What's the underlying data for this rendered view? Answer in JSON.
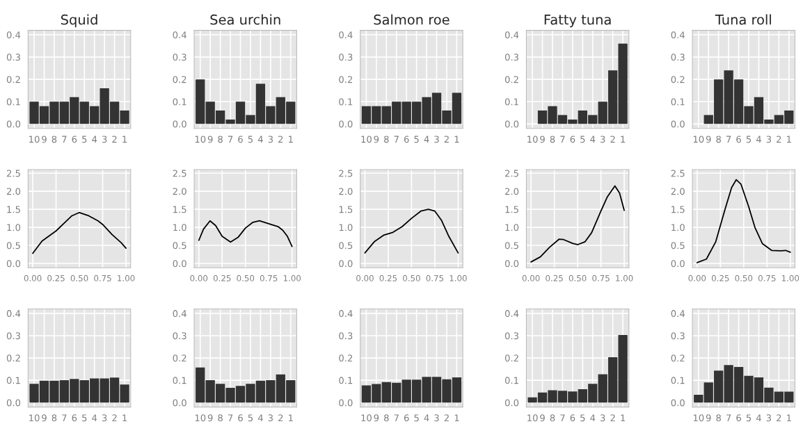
{
  "chart_data": [
    {
      "type": "bar",
      "title": "Squid",
      "categories": [
        "10",
        "9",
        "8",
        "7",
        "6",
        "5",
        "4",
        "3",
        "2",
        "1"
      ],
      "values": [
        0.1,
        0.08,
        0.1,
        0.1,
        0.12,
        0.1,
        0.08,
        0.16,
        0.1,
        0.06
      ],
      "color": "#333333",
      "ylim": [
        -0.02,
        0.42
      ],
      "yticks": [
        {
          "value": 0,
          "label": "0.0"
        },
        0.1,
        0.2,
        0.3,
        0.4
      ],
      "grid": true
    },
    {
      "type": "bar",
      "title": "Sea urchin",
      "categories": [
        "10",
        "9",
        "8",
        "7",
        "6",
        "5",
        "4",
        "3",
        "2",
        "1"
      ],
      "values": [
        0.2,
        0.1,
        0.06,
        0.02,
        0.1,
        0.04,
        0.18,
        0.08,
        0.12,
        0.1
      ],
      "color": "#333333",
      "ylim": [
        -0.02,
        0.42
      ],
      "yticks": [
        {
          "value": 0,
          "label": "0.0"
        },
        0.1,
        0.2,
        0.3,
        0.4
      ],
      "grid": true
    },
    {
      "type": "bar",
      "title": "Salmon roe",
      "categories": [
        "10",
        "9",
        "8",
        "7",
        "6",
        "5",
        "4",
        "3",
        "2",
        "1"
      ],
      "values": [
        0.08,
        0.08,
        0.08,
        0.1,
        0.1,
        0.1,
        0.12,
        0.14,
        0.06,
        0.14
      ],
      "color": "#333333",
      "ylim": [
        -0.02,
        0.42
      ],
      "yticks": [
        {
          "value": 0,
          "label": "0.0"
        },
        0.1,
        0.2,
        0.3,
        0.4
      ],
      "grid": true
    },
    {
      "type": "bar",
      "title": "Fatty tuna",
      "categories": [
        "10",
        "9",
        "8",
        "7",
        "6",
        "5",
        "4",
        "3",
        "2",
        "1"
      ],
      "values": [
        0.0,
        0.06,
        0.08,
        0.04,
        0.02,
        0.06,
        0.04,
        0.1,
        0.24,
        0.36
      ],
      "color": "#333333",
      "ylim": [
        -0.02,
        0.42
      ],
      "yticks": [
        {
          "value": 0,
          "label": "0.0"
        },
        0.1,
        0.2,
        0.3,
        0.4
      ],
      "grid": true
    },
    {
      "type": "bar",
      "title": "Tuna roll",
      "categories": [
        "10",
        "9",
        "8",
        "7",
        "6",
        "5",
        "4",
        "3",
        "2",
        "1"
      ],
      "values": [
        0.0,
        0.04,
        0.2,
        0.24,
        0.2,
        0.08,
        0.12,
        0.02,
        0.04,
        0.06
      ],
      "color": "#333333",
      "ylim": [
        -0.02,
        0.42
      ],
      "yticks": [
        {
          "value": 0,
          "label": "0.0"
        },
        0.1,
        0.2,
        0.3,
        0.4
      ],
      "grid": true
    },
    {
      "type": "line",
      "x": [
        0,
        0.1,
        0.25,
        0.35,
        0.42,
        0.5,
        0.6,
        0.7,
        0.75,
        0.85,
        0.95,
        1
      ],
      "values": [
        0.28,
        0.62,
        0.9,
        1.15,
        1.32,
        1.41,
        1.32,
        1.18,
        1.08,
        0.8,
        0.57,
        0.42
      ],
      "color": "#000000",
      "xlim": [
        -0.05,
        1.05
      ],
      "xticks": [
        {
          "value": 0,
          "label": "0.00"
        },
        {
          "value": 0.25,
          "label": "0.25"
        },
        {
          "value": 0.5,
          "label": "0.50"
        },
        {
          "value": 0.75,
          "label": "0.75"
        },
        {
          "value": 1,
          "label": "1.00"
        }
      ],
      "ylim": [
        -0.12,
        2.6
      ],
      "yticks": [
        {
          "value": 0,
          "label": "0.0"
        },
        0.5,
        {
          "value": 1,
          "label": "1.0"
        },
        1.5,
        {
          "value": 2,
          "label": "2.0"
        },
        2.5
      ],
      "grid": true
    },
    {
      "type": "line",
      "x": [
        0,
        0.05,
        0.12,
        0.18,
        0.25,
        0.34,
        0.42,
        0.5,
        0.58,
        0.65,
        0.75,
        0.85,
        0.9,
        0.95,
        1
      ],
      "values": [
        0.64,
        0.95,
        1.18,
        1.05,
        0.75,
        0.59,
        0.72,
        0.98,
        1.14,
        1.18,
        1.1,
        1.02,
        0.92,
        0.75,
        0.47
      ],
      "color": "#000000",
      "xlim": [
        -0.05,
        1.05
      ],
      "xticks": [
        {
          "value": 0,
          "label": "0.00"
        },
        {
          "value": 0.25,
          "label": "0.25"
        },
        {
          "value": 0.5,
          "label": "0.50"
        },
        {
          "value": 0.75,
          "label": "0.75"
        },
        {
          "value": 1,
          "label": "1.00"
        }
      ],
      "ylim": [
        -0.12,
        2.6
      ],
      "yticks": [
        {
          "value": 0,
          "label": "0.0"
        },
        0.5,
        {
          "value": 1,
          "label": "1.0"
        },
        1.5,
        {
          "value": 2,
          "label": "2.0"
        },
        2.5
      ],
      "grid": true
    },
    {
      "type": "line",
      "x": [
        0,
        0.1,
        0.2,
        0.3,
        0.4,
        0.5,
        0.6,
        0.68,
        0.75,
        0.82,
        0.9,
        1
      ],
      "values": [
        0.29,
        0.6,
        0.78,
        0.86,
        1.02,
        1.25,
        1.45,
        1.5,
        1.45,
        1.2,
        0.75,
        0.29
      ],
      "color": "#000000",
      "xlim": [
        -0.05,
        1.05
      ],
      "xticks": [
        {
          "value": 0,
          "label": "0.00"
        },
        {
          "value": 0.25,
          "label": "0.25"
        },
        {
          "value": 0.5,
          "label": "0.50"
        },
        {
          "value": 0.75,
          "label": "0.75"
        },
        {
          "value": 1,
          "label": "1.00"
        }
      ],
      "ylim": [
        -0.12,
        2.6
      ],
      "yticks": [
        {
          "value": 0,
          "label": "0.0"
        },
        0.5,
        {
          "value": 1,
          "label": "1.0"
        },
        1.5,
        {
          "value": 2,
          "label": "2.0"
        },
        2.5
      ],
      "grid": true
    },
    {
      "type": "line",
      "x": [
        0,
        0.1,
        0.2,
        0.3,
        0.35,
        0.45,
        0.5,
        0.58,
        0.65,
        0.75,
        0.82,
        0.9,
        0.95,
        1
      ],
      "values": [
        0.04,
        0.18,
        0.45,
        0.67,
        0.66,
        0.55,
        0.52,
        0.6,
        0.85,
        1.45,
        1.85,
        2.15,
        1.95,
        1.47
      ],
      "color": "#000000",
      "xlim": [
        -0.05,
        1.05
      ],
      "xticks": [
        {
          "value": 0,
          "label": "0.00"
        },
        {
          "value": 0.25,
          "label": "0.25"
        },
        {
          "value": 0.5,
          "label": "0.50"
        },
        {
          "value": 0.75,
          "label": "0.75"
        },
        {
          "value": 1,
          "label": "1.00"
        }
      ],
      "ylim": [
        -0.12,
        2.6
      ],
      "yticks": [
        {
          "value": 0,
          "label": "0.0"
        },
        0.5,
        {
          "value": 1,
          "label": "1.0"
        },
        1.5,
        {
          "value": 2,
          "label": "2.0"
        },
        2.5
      ],
      "grid": true
    },
    {
      "type": "line",
      "x": [
        0,
        0.1,
        0.2,
        0.3,
        0.37,
        0.42,
        0.47,
        0.55,
        0.62,
        0.7,
        0.8,
        0.9,
        0.95,
        1
      ],
      "values": [
        0.02,
        0.12,
        0.6,
        1.5,
        2.1,
        2.32,
        2.2,
        1.6,
        1.0,
        0.55,
        0.36,
        0.35,
        0.36,
        0.31
      ],
      "color": "#000000",
      "xlim": [
        -0.05,
        1.05
      ],
      "xticks": [
        {
          "value": 0,
          "label": "0.00"
        },
        {
          "value": 0.25,
          "label": "0.25"
        },
        {
          "value": 0.5,
          "label": "0.50"
        },
        {
          "value": 0.75,
          "label": "0.75"
        },
        {
          "value": 1,
          "label": "1.00"
        }
      ],
      "ylim": [
        -0.12,
        2.6
      ],
      "yticks": [
        {
          "value": 0,
          "label": "0.0"
        },
        0.5,
        {
          "value": 1,
          "label": "1.0"
        },
        1.5,
        {
          "value": 2,
          "label": "2.0"
        },
        2.5
      ],
      "grid": true
    },
    {
      "type": "bar",
      "categories": [
        "10",
        "9",
        "8",
        "7",
        "6",
        "5",
        "4",
        "3",
        "2",
        "1"
      ],
      "values": [
        0.084,
        0.098,
        0.098,
        0.1,
        0.106,
        0.1,
        0.108,
        0.108,
        0.112,
        0.081
      ],
      "color": "#333333",
      "ylim": [
        -0.02,
        0.42
      ],
      "yticks": [
        {
          "value": 0,
          "label": "0.0"
        },
        0.1,
        0.2,
        0.3,
        0.4
      ],
      "grid": true
    },
    {
      "type": "bar",
      "categories": [
        "10",
        "9",
        "8",
        "7",
        "6",
        "5",
        "4",
        "3",
        "2",
        "1"
      ],
      "values": [
        0.157,
        0.1,
        0.084,
        0.066,
        0.075,
        0.084,
        0.098,
        0.1,
        0.126,
        0.1
      ],
      "color": "#333333",
      "ylim": [
        -0.02,
        0.42
      ],
      "yticks": [
        {
          "value": 0,
          "label": "0.0"
        },
        0.1,
        0.2,
        0.3,
        0.4
      ],
      "grid": true
    },
    {
      "type": "bar",
      "categories": [
        "10",
        "9",
        "8",
        "7",
        "6",
        "5",
        "4",
        "3",
        "2",
        "1"
      ],
      "values": [
        0.077,
        0.083,
        0.092,
        0.089,
        0.103,
        0.103,
        0.115,
        0.115,
        0.104,
        0.113
      ],
      "color": "#333333",
      "ylim": [
        -0.02,
        0.42
      ],
      "yticks": [
        {
          "value": 0,
          "label": "0.0"
        },
        0.1,
        0.2,
        0.3,
        0.4
      ],
      "grid": true
    },
    {
      "type": "bar",
      "categories": [
        "10",
        "9",
        "8",
        "7",
        "6",
        "5",
        "4",
        "3",
        "2",
        "1"
      ],
      "values": [
        0.023,
        0.045,
        0.055,
        0.053,
        0.05,
        0.06,
        0.084,
        0.127,
        0.203,
        0.303
      ],
      "color": "#333333",
      "ylim": [
        -0.02,
        0.42
      ],
      "yticks": [
        {
          "value": 0,
          "label": "0.0"
        },
        0.1,
        0.2,
        0.3,
        0.4
      ],
      "grid": true
    },
    {
      "type": "bar",
      "categories": [
        "10",
        "9",
        "8",
        "7",
        "6",
        "5",
        "4",
        "3",
        "2",
        "1"
      ],
      "values": [
        0.035,
        0.09,
        0.143,
        0.168,
        0.16,
        0.12,
        0.113,
        0.067,
        0.049,
        0.049
      ],
      "color": "#333333",
      "ylim": [
        -0.02,
        0.42
      ],
      "yticks": [
        {
          "value": 0,
          "label": "0.0"
        },
        0.1,
        0.2,
        0.3,
        0.4
      ],
      "grid": true
    }
  ]
}
